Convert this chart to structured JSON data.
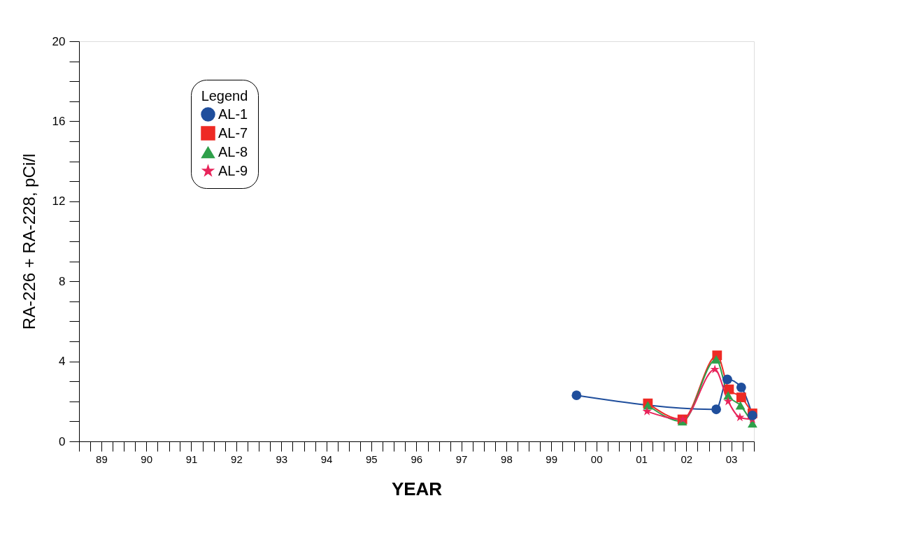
{
  "chart_data": {
    "type": "line",
    "xlabel": "YEAR",
    "ylabel": "RA-226 + RA-228, pCi/l",
    "legend_title": "Legend",
    "legend": "top left",
    "grid": false,
    "line_style": "solid",
    "xlim": [
      "1989-01-01",
      "2004-01-01"
    ],
    "ylim": [
      0,
      20
    ],
    "xticks": [
      {
        "value": "1989-01-01",
        "label": null
      },
      {
        "value": "1989-04-01",
        "label": null
      },
      {
        "value": "1989-07-01",
        "label": "89"
      },
      {
        "value": "1989-10-01",
        "label": null
      },
      {
        "value": "1990-01-01",
        "label": null
      },
      {
        "value": "1990-04-01",
        "label": null
      },
      {
        "value": "1990-07-01",
        "label": "90"
      },
      {
        "value": "1990-10-01",
        "label": null
      },
      {
        "value": "1991-01-01",
        "label": null
      },
      {
        "value": "1991-04-01",
        "label": null
      },
      {
        "value": "1991-07-01",
        "label": "91"
      },
      {
        "value": "1991-10-01",
        "label": null
      },
      {
        "value": "1992-01-01",
        "label": null
      },
      {
        "value": "1992-04-01",
        "label": null
      },
      {
        "value": "1992-07-01",
        "label": "92"
      },
      {
        "value": "1992-10-01",
        "label": null
      },
      {
        "value": "1993-01-01",
        "label": null
      },
      {
        "value": "1993-04-01",
        "label": null
      },
      {
        "value": "1993-07-01",
        "label": "93"
      },
      {
        "value": "1993-10-01",
        "label": null
      },
      {
        "value": "1994-01-01",
        "label": null
      },
      {
        "value": "1994-04-01",
        "label": null
      },
      {
        "value": "1994-07-01",
        "label": "94"
      },
      {
        "value": "1994-10-01",
        "label": null
      },
      {
        "value": "1995-01-01",
        "label": null
      },
      {
        "value": "1995-04-01",
        "label": null
      },
      {
        "value": "1995-07-01",
        "label": "95"
      },
      {
        "value": "1995-10-01",
        "label": null
      },
      {
        "value": "1996-01-01",
        "label": null
      },
      {
        "value": "1996-04-01",
        "label": null
      },
      {
        "value": "1996-07-01",
        "label": "96"
      },
      {
        "value": "1996-10-01",
        "label": null
      },
      {
        "value": "1997-01-01",
        "label": null
      },
      {
        "value": "1997-04-01",
        "label": null
      },
      {
        "value": "1997-07-01",
        "label": "97"
      },
      {
        "value": "1997-10-01",
        "label": null
      },
      {
        "value": "1998-01-01",
        "label": null
      },
      {
        "value": "1998-04-01",
        "label": null
      },
      {
        "value": "1998-07-01",
        "label": "98"
      },
      {
        "value": "1998-10-01",
        "label": null
      },
      {
        "value": "1999-01-01",
        "label": null
      },
      {
        "value": "1999-04-01",
        "label": null
      },
      {
        "value": "1999-07-01",
        "label": "99"
      },
      {
        "value": "1999-10-01",
        "label": null
      },
      {
        "value": "2000-01-01",
        "label": null
      },
      {
        "value": "2000-04-01",
        "label": null
      },
      {
        "value": "2000-07-01",
        "label": "00"
      },
      {
        "value": "2000-10-01",
        "label": null
      },
      {
        "value": "2001-01-01",
        "label": null
      },
      {
        "value": "2001-04-01",
        "label": null
      },
      {
        "value": "2001-07-01",
        "label": "01"
      },
      {
        "value": "2001-10-01",
        "label": null
      },
      {
        "value": "2002-01-01",
        "label": null
      },
      {
        "value": "2002-04-01",
        "label": null
      },
      {
        "value": "2002-07-01",
        "label": "02"
      },
      {
        "value": "2002-10-01",
        "label": null
      },
      {
        "value": "2003-01-01",
        "label": null
      },
      {
        "value": "2003-04-01",
        "label": null
      },
      {
        "value": "2003-07-01",
        "label": "03"
      },
      {
        "value": "2003-10-01",
        "label": null
      },
      {
        "value": "2004-01-01",
        "label": null
      }
    ],
    "yticks": [
      0,
      {
        "value": 1,
        "label": null
      },
      {
        "value": 2,
        "label": null
      },
      {
        "value": 3,
        "label": null
      },
      4,
      {
        "value": 5,
        "label": null
      },
      {
        "value": 6,
        "label": null
      },
      {
        "value": 7,
        "label": null
      },
      8,
      {
        "value": 9,
        "label": null
      },
      {
        "value": 10,
        "label": null
      },
      {
        "value": 11,
        "label": null
      },
      12,
      {
        "value": 13,
        "label": null
      },
      {
        "value": 14,
        "label": null
      },
      {
        "value": 15,
        "label": null
      },
      16,
      {
        "value": 17,
        "label": null
      },
      {
        "value": 18,
        "label": null
      },
      {
        "value": 19,
        "label": null
      },
      20
    ],
    "series": [
      {
        "name": "AL-1",
        "color": "#1f4e9c",
        "marker": "circle",
        "x": [
          "2000-01-22",
          "2003-03-01",
          "2003-05-30",
          "2003-09-20",
          "2003-12-20"
        ],
        "values": [
          2.3,
          1.6,
          3.1,
          2.7,
          1.3
        ]
      },
      {
        "name": "AL-7",
        "color": "#ee2a24",
        "marker": "square",
        "x": [
          "2001-08-23",
          "2002-05-30",
          "2003-03-08",
          "2003-06-13",
          "2003-09-20",
          "2003-12-20"
        ],
        "values": [
          1.9,
          1.1,
          4.3,
          2.6,
          2.2,
          1.4
        ]
      },
      {
        "name": "AL-8",
        "color": "#2ea04a",
        "marker": "triangle",
        "x": [
          "2001-08-23",
          "2002-05-30",
          "2003-03-01",
          "2003-06-06",
          "2003-09-13",
          "2003-12-20"
        ],
        "values": [
          1.8,
          1.0,
          4.1,
          2.3,
          1.8,
          0.9
        ]
      },
      {
        "name": "AL-9",
        "color": "#e8245a",
        "marker": "star",
        "x": [
          "2001-08-16",
          "2002-06-03",
          "2003-02-18",
          "2003-06-06",
          "2003-09-09",
          "2003-12-20"
        ],
        "values": [
          1.5,
          1.1,
          3.6,
          2.0,
          1.2,
          1.1
        ]
      }
    ]
  }
}
